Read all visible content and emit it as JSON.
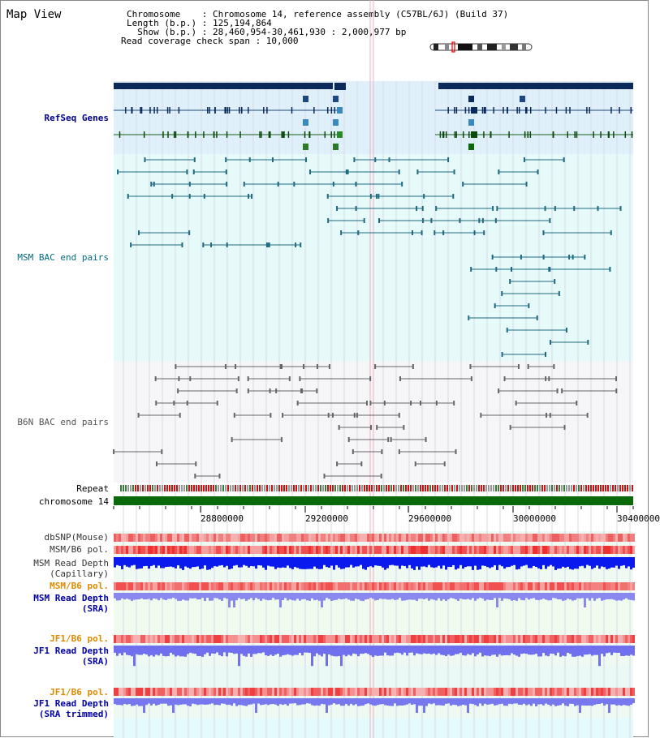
{
  "title": "Map View",
  "header": {
    "chromosome": "Chromosome    : Chromosome 14, reference assembly (C57BL/6J) (Build 37)",
    "length": "Length (b.p.) : 125,194,864",
    "show": "  Show (b.p.) : 28,460,954-30,461,930 : 2,000,977 bp",
    "coverage": "Read coverage check span : 10,000"
  },
  "tracks": {
    "refseq": "RefSeq Genes",
    "msm_bac": "MSM BAC end pairs",
    "b6n_bac": "B6N BAC end pairs",
    "repeat": "Repeat",
    "chrom": "chromosome 14",
    "dbsnp": "dbSNP(Mouse)",
    "msm_b6_pol1": "MSM/B6 pol.",
    "msm_depth_cap": "MSM Read Depth\n(Capillary)",
    "msm_b6_pol2": "MSM/B6 pol.",
    "msm_depth_sra": "MSM Read Depth\n(SRA)",
    "jf1_b6_pol1": "JF1/B6 pol.",
    "jf1_depth_sra": "JF1 Read Depth\n(SRA)",
    "jf1_b6_pol2": "JF1/B6 pol.",
    "jf1_depth_trim": "JF1 Read Depth\n(SRA trimmed)"
  },
  "ticks": [
    "28800000",
    "29200000",
    "29600000",
    "30000000",
    "30400000"
  ],
  "colors": {
    "refseq_label": "#00008b",
    "msm_label": "#006b7f",
    "b6n_label": "#555555",
    "orange_label": "#e08a00",
    "blue_label": "#0000aa"
  }
}
